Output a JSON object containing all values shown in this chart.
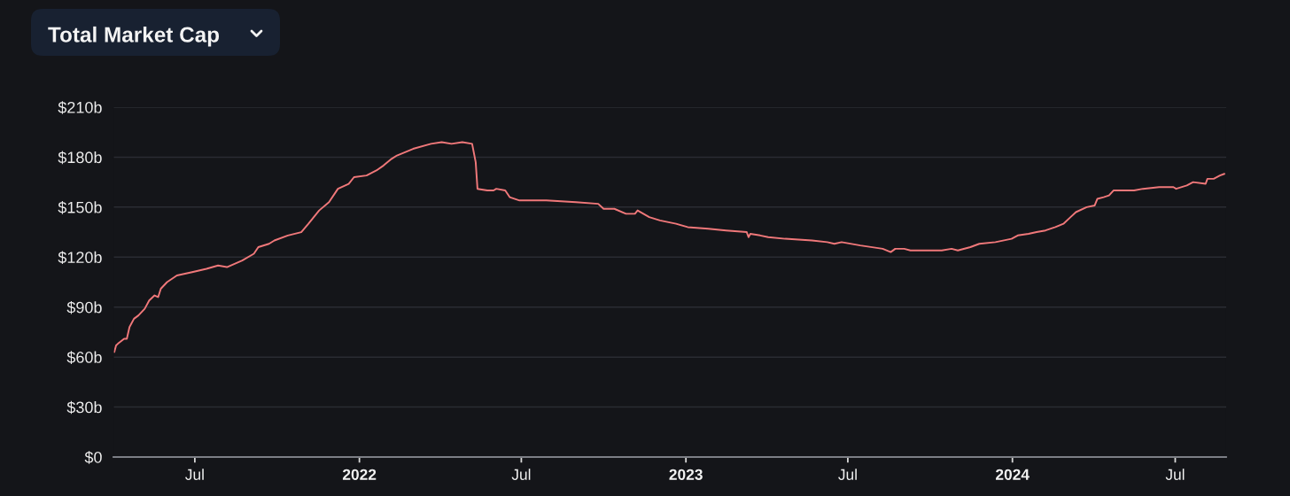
{
  "chart_data": {
    "type": "line",
    "title": "Total Market Cap",
    "x": [
      "2021-04-02",
      "2021-04-04",
      "2021-04-06",
      "2021-04-13",
      "2021-04-16",
      "2021-04-19",
      "2021-04-24",
      "2021-04-29",
      "2021-05-06",
      "2021-05-11",
      "2021-05-17",
      "2021-05-21",
      "2021-05-24",
      "2021-05-31",
      "2021-06-11",
      "2021-06-28",
      "2021-07-14",
      "2021-07-27",
      "2021-08-06",
      "2021-08-23",
      "2021-09-05",
      "2021-09-10",
      "2021-09-22",
      "2021-09-28",
      "2021-10-13",
      "2021-10-28",
      "2021-11-05",
      "2021-11-17",
      "2021-11-28",
      "2021-12-08",
      "2021-12-20",
      "2021-12-26",
      "2022-01-09",
      "2022-01-20",
      "2022-01-28",
      "2022-02-06",
      "2022-02-12",
      "2022-03-02",
      "2022-03-22",
      "2022-04-03",
      "2022-04-14",
      "2022-04-26",
      "2022-05-07",
      "2022-05-11",
      "2022-05-13",
      "2022-05-24",
      "2022-05-31",
      "2022-06-03",
      "2022-06-13",
      "2022-06-18",
      "2022-06-29",
      "2022-07-29",
      "2022-08-31",
      "2022-09-25",
      "2022-10-01",
      "2022-10-13",
      "2022-10-26",
      "2022-11-05",
      "2022-11-08",
      "2022-11-21",
      "2022-12-03",
      "2022-12-21",
      "2023-01-03",
      "2023-01-26",
      "2023-02-15",
      "2023-03-10",
      "2023-03-12",
      "2023-03-14",
      "2023-03-25",
      "2023-04-03",
      "2023-04-22",
      "2023-05-22",
      "2023-06-08",
      "2023-06-16",
      "2023-06-24",
      "2023-07-15",
      "2023-08-09",
      "2023-08-18",
      "2023-08-23",
      "2023-09-02",
      "2023-09-09",
      "2023-09-30",
      "2023-10-14",
      "2023-10-25",
      "2023-11-01",
      "2023-11-15",
      "2023-11-25",
      "2023-12-13",
      "2023-12-31",
      "2024-01-07",
      "2024-01-19",
      "2024-01-28",
      "2024-02-07",
      "2024-02-18",
      "2024-02-27",
      "2024-03-06",
      "2024-03-12",
      "2024-03-24",
      "2024-04-02",
      "2024-04-05",
      "2024-04-12",
      "2024-04-18",
      "2024-04-23",
      "2024-04-28",
      "2024-05-16",
      "2024-05-26",
      "2024-06-13",
      "2024-06-29",
      "2024-07-02",
      "2024-07-14",
      "2024-07-21",
      "2024-08-04",
      "2024-08-06",
      "2024-08-13",
      "2024-08-20",
      "2024-08-25"
    ],
    "series": [
      {
        "color": "#f0787a",
        "values": [
          63,
          67,
          68,
          71,
          71,
          78,
          83,
          85,
          89,
          94,
          97,
          96,
          101,
          105,
          109,
          111,
          113,
          115,
          114,
          118,
          122,
          126,
          128,
          130,
          133,
          135,
          140,
          148,
          153,
          161,
          164,
          168,
          169,
          172,
          175,
          179,
          181,
          185,
          188,
          189,
          188,
          189,
          188,
          177,
          161,
          160,
          160,
          161,
          160,
          156,
          154,
          154,
          153,
          152,
          149,
          149,
          146,
          146,
          148,
          144,
          142,
          140,
          138,
          137,
          136,
          135,
          132,
          134,
          133,
          132,
          131,
          130,
          129,
          128,
          129,
          127,
          125,
          123,
          125,
          125,
          124,
          124,
          124,
          125,
          124,
          126,
          128,
          129,
          131,
          133,
          134,
          135,
          136,
          138,
          140,
          144,
          147,
          150,
          151,
          155,
          156,
          157,
          160,
          160,
          160,
          161,
          162,
          162,
          161,
          163,
          165,
          164,
          167,
          167,
          169,
          170
        ]
      }
    ],
    "xlim": [
      "2021-04-01",
      "2024-08-27"
    ],
    "xticks": [
      {
        "value": "2021-07-01",
        "label": "Jul"
      },
      {
        "value": "2022-01-01",
        "label": "2022"
      },
      {
        "value": "2022-07-01",
        "label": "Jul"
      },
      {
        "value": "2023-01-01",
        "label": "2023"
      },
      {
        "value": "2023-07-01",
        "label": "Jul"
      },
      {
        "value": "2024-01-01",
        "label": "2024"
      },
      {
        "value": "2024-07-01",
        "label": "Jul"
      }
    ],
    "ylim": [
      0,
      210
    ],
    "yticks": [
      {
        "value": 0,
        "label": "$0"
      },
      {
        "value": 30,
        "label": "$30b"
      },
      {
        "value": 60,
        "label": "$60b"
      },
      {
        "value": 90,
        "label": "$90b"
      },
      {
        "value": 120,
        "label": "$120b"
      },
      {
        "value": 150,
        "label": "$150b"
      },
      {
        "value": 180,
        "label": "$180b"
      },
      {
        "value": 210,
        "label": "$210b"
      }
    ],
    "grid": "y"
  }
}
